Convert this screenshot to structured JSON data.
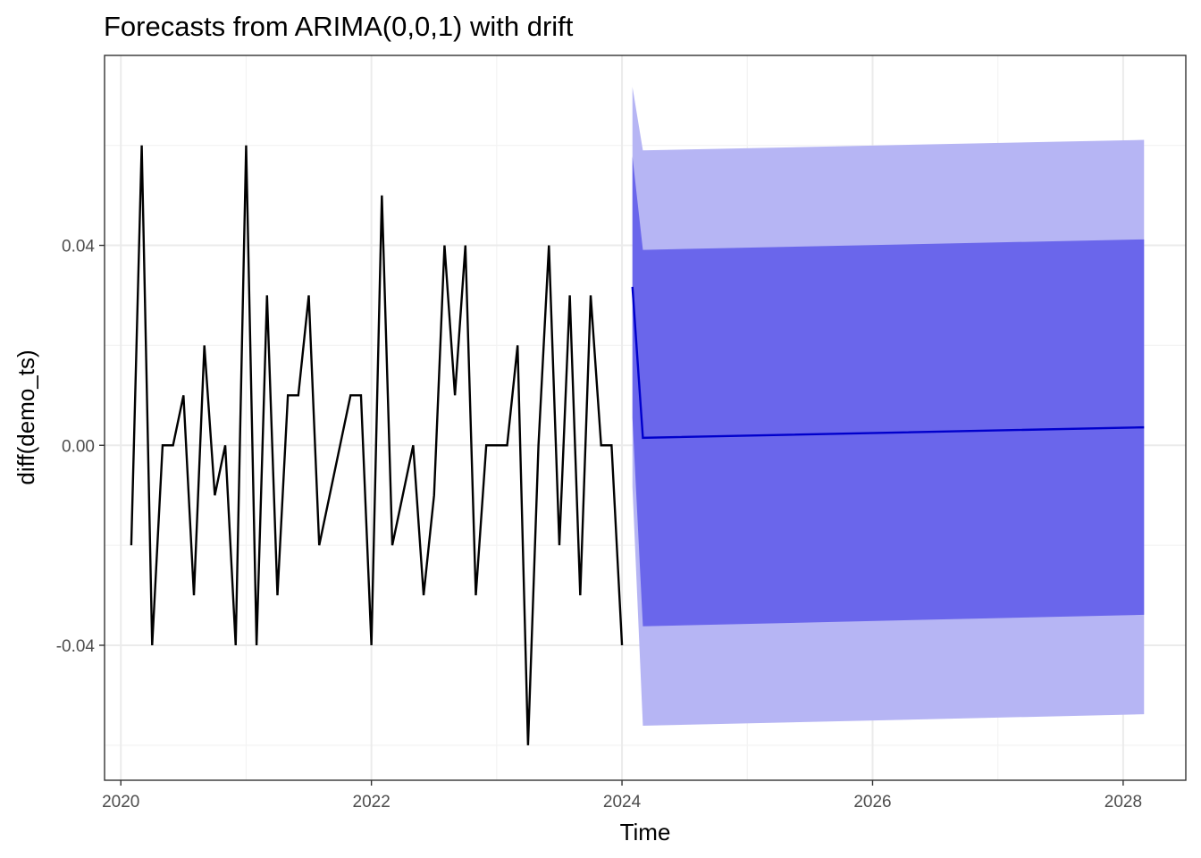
{
  "chart_data": {
    "type": "line",
    "title": "Forecasts from ARIMA(0,0,1) with drift",
    "xlabel": "Time",
    "ylabel": "diff(demo_ts)",
    "xlim": [
      2019.87,
      2028.5
    ],
    "ylim": [
      -0.067,
      0.078
    ],
    "x_ticks": [
      2020,
      2022,
      2024,
      2026,
      2028
    ],
    "x_tick_labels": [
      "2020",
      "2022",
      "2024",
      "2026",
      "2028"
    ],
    "y_ticks": [
      -0.04,
      0.0,
      0.04
    ],
    "y_tick_labels": [
      "-0.04",
      "0.00",
      "0.04"
    ],
    "grid": true,
    "legend": "none",
    "colors": {
      "series": "#000000",
      "forecast": "#0000CC",
      "band80": "#6A66EB",
      "band95": "#B6B5F4",
      "panel_border": "#333333",
      "grid_major": "#EBEBEB",
      "grid_minor": "#F3F3F3"
    },
    "series": [
      {
        "x_start": 2020.0833,
        "x_step": 0.0833333,
        "values": [
          -0.02,
          0.06,
          -0.04,
          0.0,
          0.0,
          0.01,
          -0.03,
          0.02,
          -0.01,
          0.0,
          -0.04,
          0.06,
          -0.04,
          0.03,
          -0.03,
          0.01,
          0.01,
          0.03,
          -0.02,
          -0.01,
          0.0,
          0.01,
          0.01,
          -0.04,
          0.05,
          -0.02,
          -0.01,
          0.0,
          -0.03,
          -0.01,
          0.04,
          0.01,
          0.04,
          -0.03,
          0.0,
          0.0,
          0.0,
          0.02,
          -0.06,
          0.0,
          0.04,
          -0.02,
          0.03,
          -0.03,
          0.03,
          0.0,
          0.0,
          -0.04
        ]
      }
    ],
    "forecast": {
      "x_start": 2024.0833,
      "x_step": 0.0833333,
      "points": [
        {
          "x": 2024.0833,
          "mean": 0.0317,
          "lo80": 0.0055,
          "hi80": 0.0578,
          "lo95": -0.0083,
          "hi95": 0.0717
        },
        {
          "x": 2024.1667,
          "mean": 0.0015,
          "lo80": -0.0362,
          "hi80": 0.0391,
          "lo95": -0.0561,
          "hi95": 0.059
        },
        {
          "x": 2028.1667,
          "mean": 0.0036,
          "lo80": -0.0339,
          "hi80": 0.0412,
          "lo95": -0.0538,
          "hi95": 0.0611
        }
      ]
    }
  }
}
